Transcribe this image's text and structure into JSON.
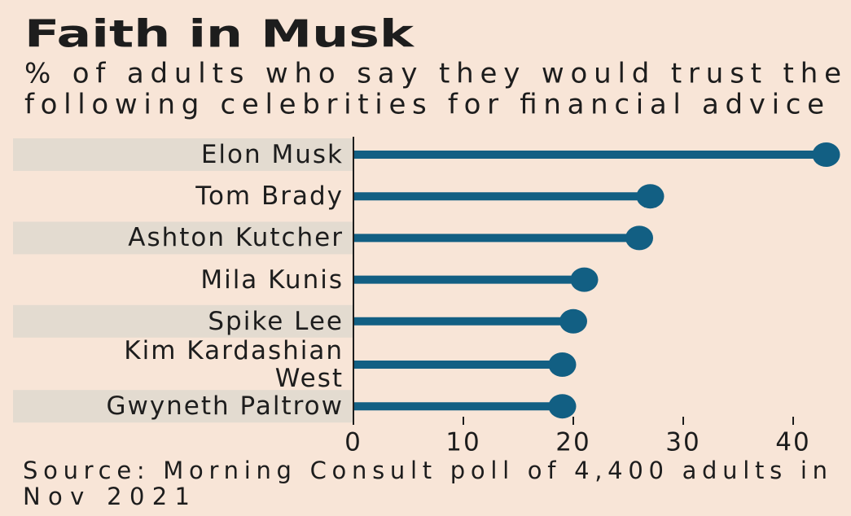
{
  "chart_data": {
    "type": "lollipop",
    "title": "Faith in Musk",
    "subtitle": [
      "% of adults who say they would trust the",
      "following celebrities for financial advice"
    ],
    "categories": [
      "Elon Musk",
      "Tom Brady",
      "Ashton Kutcher",
      "Mila Kunis",
      "Spike Lee",
      "Kim Kardashian\nWest",
      "Gwyneth Paltrow"
    ],
    "values": [
      43,
      27,
      26,
      21,
      20,
      19,
      19
    ],
    "color": "#125f83",
    "xlim": [
      0,
      44
    ],
    "xticks": [
      0,
      10,
      20,
      30,
      40
    ],
    "source": [
      "Source: Morning Consult poll of 4,400 adults in",
      "Nov 2021"
    ]
  }
}
